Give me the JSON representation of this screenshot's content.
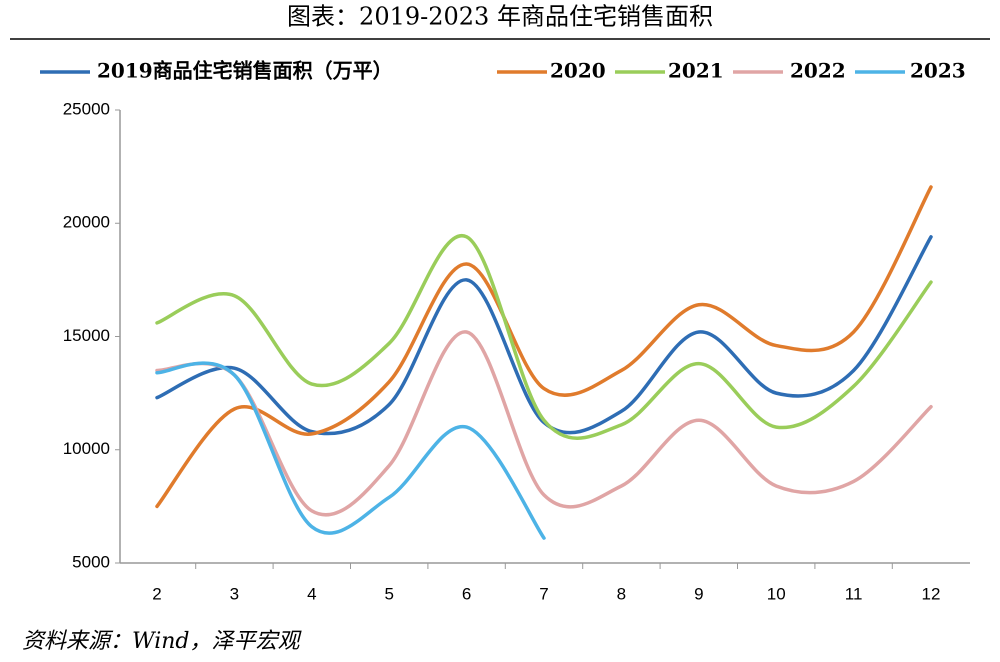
{
  "chart_data": {
    "type": "line",
    "title": "图表：2019-2023 年商品住宅销售面积",
    "source": "资料来源：Wind，泽平宏观",
    "categories": [
      "2",
      "3",
      "4",
      "5",
      "6",
      "7",
      "8",
      "9",
      "10",
      "11",
      "12"
    ],
    "series": [
      {
        "name": "2019商品住宅销售面积（万平）",
        "color": "#2e6db4",
        "values": [
          12300,
          13600,
          10800,
          12000,
          17500,
          11200,
          11700,
          15200,
          12500,
          13500,
          19400
        ]
      },
      {
        "name": "2020",
        "color": "#e07b2c",
        "values": [
          7500,
          11800,
          10700,
          13000,
          18200,
          12700,
          13500,
          16400,
          14600,
          15200,
          21600
        ]
      },
      {
        "name": "2021",
        "color": "#9acd5a",
        "values": [
          15600,
          16800,
          12900,
          14700,
          19400,
          11300,
          11100,
          13800,
          11000,
          12800,
          17400
        ]
      },
      {
        "name": "2022",
        "color": "#e0a5a5",
        "values": [
          13500,
          13300,
          7300,
          9300,
          15200,
          8000,
          8400,
          11300,
          8400,
          8600,
          11900
        ]
      },
      {
        "name": "2023",
        "color": "#4db3e6",
        "values": [
          13400,
          13300,
          6600,
          7900,
          11000,
          6100,
          null,
          null,
          null,
          null,
          null
        ]
      }
    ],
    "ylim": [
      5000,
      25000
    ],
    "yticks": [
      5000,
      10000,
      15000,
      20000,
      25000
    ],
    "grid": false
  }
}
